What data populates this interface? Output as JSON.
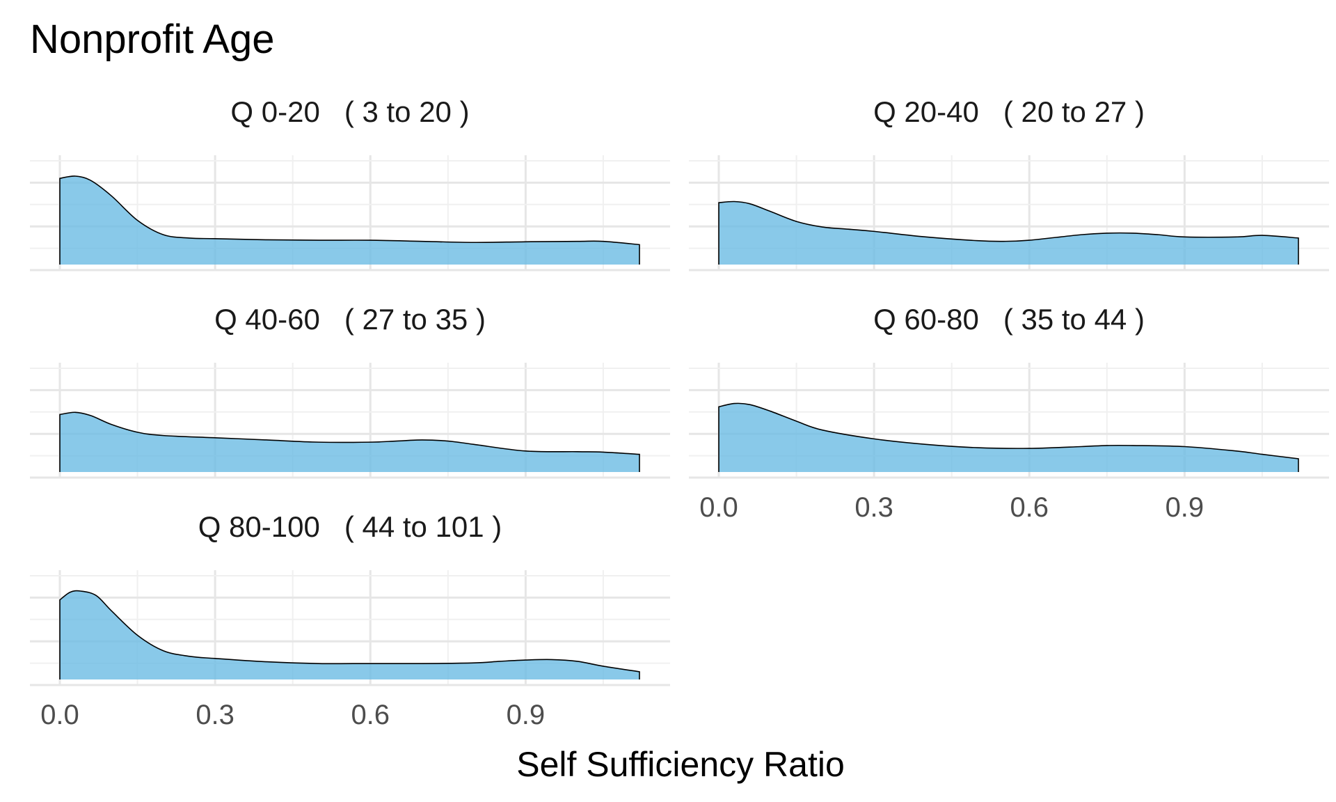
{
  "title": "Nonprofit Age",
  "xlabel": "Self Sufficiency Ratio",
  "colors": {
    "fill": "#6BBCE3",
    "outline": "#000000",
    "grid_major": "#E6E6E6",
    "grid_minor": "#F0F0F0",
    "title": "#000000",
    "tick_text": "#4D4D4D",
    "strip_text": "#1A1A1A"
  },
  "chart_data": [
    {
      "type": "area",
      "subtype": "density",
      "panel": "Q 0-20   ( 3 to 20 )",
      "xlim": [
        0,
        1.12
      ],
      "ylim": [
        0,
        4.0
      ],
      "x_ticks": [],
      "x": [
        0,
        0.03,
        0.06,
        0.1,
        0.15,
        0.2,
        0.25,
        0.3,
        0.4,
        0.5,
        0.6,
        0.7,
        0.8,
        0.9,
        1.0,
        1.05,
        1.12
      ],
      "y": [
        3.9,
        4.0,
        3.8,
        3.1,
        2.0,
        1.35,
        1.2,
        1.17,
        1.12,
        1.1,
        1.1,
        1.05,
        1.0,
        1.03,
        1.05,
        1.05,
        0.9
      ]
    },
    {
      "type": "area",
      "subtype": "density",
      "panel": "Q 20-40   ( 20 to 27 )",
      "xlim": [
        0,
        1.12
      ],
      "ylim": [
        0,
        4.0
      ],
      "x_ticks": [],
      "x": [
        0,
        0.03,
        0.06,
        0.1,
        0.15,
        0.2,
        0.25,
        0.3,
        0.4,
        0.5,
        0.55,
        0.6,
        0.7,
        0.75,
        0.8,
        0.85,
        0.9,
        1.0,
        1.05,
        1.12
      ],
      "y": [
        2.8,
        2.85,
        2.75,
        2.4,
        1.95,
        1.7,
        1.6,
        1.5,
        1.25,
        1.08,
        1.05,
        1.1,
        1.35,
        1.42,
        1.42,
        1.35,
        1.25,
        1.25,
        1.32,
        1.2
      ]
    },
    {
      "type": "area",
      "subtype": "density",
      "panel": "Q 40-60   ( 27 to 35 )",
      "xlim": [
        0,
        1.12
      ],
      "ylim": [
        0,
        4.0
      ],
      "x_ticks": [],
      "x": [
        0,
        0.03,
        0.06,
        0.1,
        0.15,
        0.2,
        0.3,
        0.4,
        0.5,
        0.6,
        0.65,
        0.7,
        0.75,
        0.8,
        0.9,
        1.0,
        1.05,
        1.12
      ],
      "y": [
        2.6,
        2.7,
        2.55,
        2.15,
        1.8,
        1.65,
        1.55,
        1.45,
        1.35,
        1.35,
        1.4,
        1.45,
        1.4,
        1.25,
        0.95,
        0.92,
        0.9,
        0.8
      ]
    },
    {
      "type": "area",
      "subtype": "density",
      "panel": "Q 60-80   ( 35 to 44 )",
      "xlim": [
        0,
        1.12
      ],
      "ylim": [
        0,
        4.0
      ],
      "x_ticks": [
        0.0,
        0.3,
        0.6,
        0.9
      ],
      "x": [
        0,
        0.03,
        0.06,
        0.1,
        0.15,
        0.2,
        0.3,
        0.4,
        0.5,
        0.6,
        0.7,
        0.75,
        0.8,
        0.9,
        1.0,
        1.05,
        1.12
      ],
      "y": [
        2.95,
        3.1,
        3.05,
        2.75,
        2.3,
        1.9,
        1.5,
        1.25,
        1.1,
        1.07,
        1.15,
        1.2,
        1.2,
        1.15,
        0.95,
        0.8,
        0.6
      ]
    },
    {
      "type": "area",
      "subtype": "density",
      "panel": "Q 80-100   ( 44 to 101 )",
      "xlim": [
        0,
        1.12
      ],
      "ylim": [
        0,
        4.0
      ],
      "x_ticks": [
        0.0,
        0.3,
        0.6,
        0.9
      ],
      "x": [
        0,
        0.02,
        0.04,
        0.07,
        0.1,
        0.15,
        0.2,
        0.25,
        0.3,
        0.4,
        0.5,
        0.6,
        0.7,
        0.8,
        0.85,
        0.9,
        0.95,
        1.0,
        1.05,
        1.12
      ],
      "y": [
        3.6,
        3.95,
        4.0,
        3.8,
        3.1,
        2.0,
        1.3,
        1.05,
        0.95,
        0.8,
        0.72,
        0.72,
        0.72,
        0.75,
        0.82,
        0.88,
        0.9,
        0.82,
        0.6,
        0.35
      ]
    }
  ]
}
